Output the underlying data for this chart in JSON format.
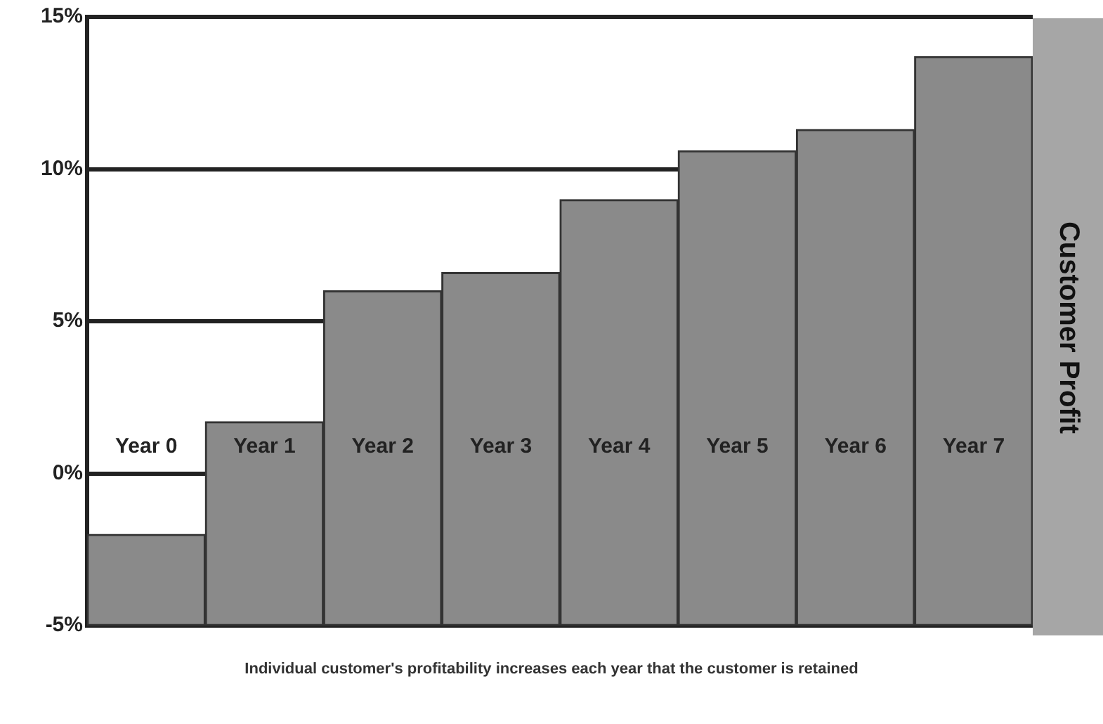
{
  "chart_data": {
    "type": "bar",
    "title": "Customer Profit",
    "categories": [
      "Year 0",
      "Year 1",
      "Year 2",
      "Year 3",
      "Year 4",
      "Year 5",
      "Year 6",
      "Year 7"
    ],
    "base": [
      -5,
      -5,
      -5,
      -5,
      -5,
      -5,
      -5,
      -5
    ],
    "values": [
      3,
      6.7,
      11,
      11.6,
      14,
      15.6,
      16.3,
      18.7
    ],
    "color": "#8a8a8a",
    "ylim": [
      -5,
      15
    ],
    "yticks": [
      {
        "value": -5,
        "label": "-5%"
      },
      {
        "value": 0,
        "label": "0%"
      },
      {
        "value": 5,
        "label": "5%"
      },
      {
        "value": 10,
        "label": "10%"
      },
      {
        "value": 15,
        "label": "15%"
      }
    ],
    "grid": true,
    "annotations": [
      "Individual customer's profitability increases each year that the customer is retained"
    ]
  }
}
